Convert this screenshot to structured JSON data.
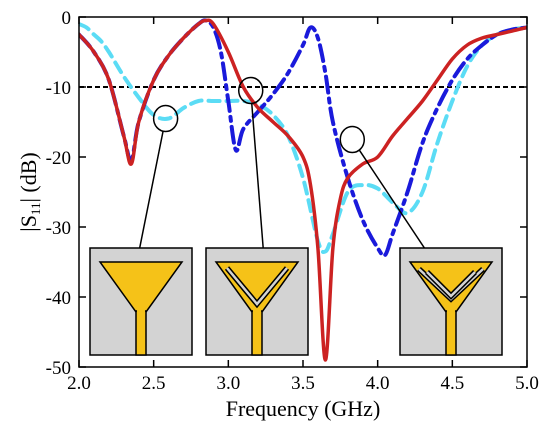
{
  "chart_data": {
    "type": "line",
    "xlabel": "Frequency (GHz)",
    "ylabel": {
      "prefix": "|S",
      "sub": "11",
      "suffix": "| (dB)"
    },
    "xlim": [
      2.0,
      5.0
    ],
    "ylim": [
      -50,
      0
    ],
    "xticks": [
      2.0,
      2.5,
      3.0,
      3.5,
      4.0,
      4.5,
      5.0
    ],
    "xtick_labels": [
      "2.0",
      "2.5",
      "3.0",
      "3.5",
      "4.0",
      "4.5",
      "5.0"
    ],
    "yticks": [
      0,
      -10,
      -20,
      -30,
      -40,
      -50
    ],
    "ytick_labels": [
      "0",
      "-10",
      "-20",
      "-30",
      "-40",
      "-50"
    ],
    "reference_line": {
      "y": -10,
      "style": "dashed",
      "color": "#000000"
    },
    "series": [
      {
        "style": "dashed",
        "color": "#5bdcf5",
        "x": [
          2.0,
          2.05,
          2.1,
          2.15,
          2.2,
          2.3,
          2.4,
          2.5,
          2.6,
          2.7,
          2.8,
          2.9,
          3.0,
          3.1,
          3.2,
          3.3,
          3.4,
          3.5,
          3.6,
          3.65,
          3.7,
          3.8,
          3.9,
          4.0,
          4.1,
          4.2,
          4.3,
          4.4,
          4.5,
          4.6,
          4.7,
          4.8,
          4.9,
          5.0
        ],
        "values": [
          -1,
          -1.5,
          -2.5,
          -3.5,
          -5,
          -8.5,
          -11.5,
          -14,
          -14.5,
          -13,
          -12,
          -12,
          -12,
          -12,
          -12.5,
          -14,
          -17,
          -23,
          -32,
          -33.5,
          -31,
          -25,
          -24,
          -24.5,
          -26.5,
          -28,
          -25,
          -18,
          -12,
          -7,
          -4,
          -2.5,
          -1.8,
          -1.5
        ]
      },
      {
        "style": "dash-dot",
        "color": "#1a1adb",
        "x": [
          2.0,
          2.1,
          2.2,
          2.3,
          2.35,
          2.4,
          2.5,
          2.6,
          2.7,
          2.8,
          2.85,
          2.9,
          2.95,
          3.0,
          3.05,
          3.1,
          3.2,
          3.3,
          3.4,
          3.5,
          3.55,
          3.6,
          3.65,
          3.7,
          3.8,
          3.9,
          4.0,
          4.05,
          4.1,
          4.2,
          4.3,
          4.4,
          4.5,
          4.6,
          4.7,
          4.8,
          4.9,
          5.0
        ],
        "values": [
          -2.5,
          -5,
          -9,
          -17,
          -20.5,
          -15,
          -9,
          -5.5,
          -3,
          -1,
          -0.5,
          -1.5,
          -5,
          -12,
          -19,
          -16,
          -13.5,
          -11,
          -8,
          -4,
          -1.5,
          -3,
          -8,
          -15,
          -23,
          -29,
          -33,
          -34,
          -31,
          -25,
          -18,
          -13,
          -9,
          -6,
          -4,
          -2.5,
          -1.8,
          -1.5
        ]
      },
      {
        "style": "solid",
        "color": "#cc2222",
        "x": [
          2.0,
          2.1,
          2.2,
          2.3,
          2.35,
          2.4,
          2.5,
          2.6,
          2.7,
          2.8,
          2.85,
          2.9,
          3.0,
          3.1,
          3.2,
          3.3,
          3.4,
          3.5,
          3.55,
          3.6,
          3.65,
          3.7,
          3.75,
          3.8,
          3.9,
          4.0,
          4.1,
          4.2,
          4.3,
          4.4,
          4.5,
          4.6,
          4.7,
          4.8,
          4.9,
          5.0
        ],
        "values": [
          -2.5,
          -5,
          -9,
          -17,
          -21,
          -15,
          -9,
          -5.5,
          -3,
          -1,
          -0.5,
          -1,
          -5,
          -10,
          -13,
          -15,
          -17,
          -20,
          -24,
          -33,
          -49,
          -33,
          -26,
          -23,
          -21,
          -20,
          -17,
          -14.5,
          -12,
          -9,
          -6,
          -4,
          -3,
          -2.5,
          -2,
          -1.5
        ]
      }
    ],
    "annotations": [
      {
        "ellipse_at": [
          2.58,
          -14.5
        ],
        "arrow_to": [
          2.35,
          -39
        ],
        "inset": "antenna-v1"
      },
      {
        "ellipse_at": [
          3.15,
          -10.5
        ],
        "arrow_to": [
          3.25,
          -37.5
        ],
        "inset": "antenna-v2"
      },
      {
        "ellipse_at": [
          3.83,
          -17.5
        ],
        "arrow_to": [
          4.5,
          -39
        ],
        "inset": "antenna-v3"
      }
    ],
    "colors": {
      "inset_bg": "#d3d3d3",
      "antenna": "#f5c218"
    }
  }
}
